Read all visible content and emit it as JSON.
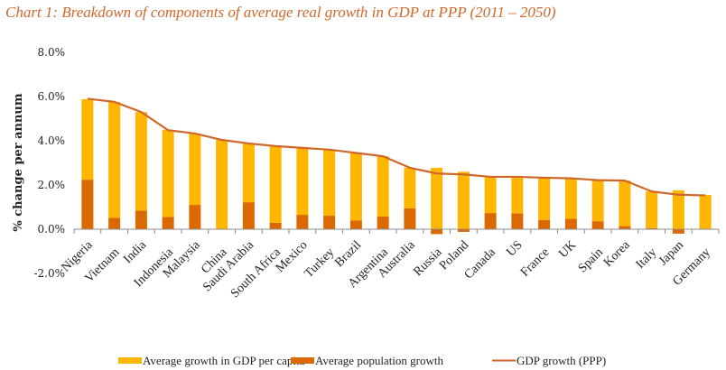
{
  "chart_data": {
    "type": "bar",
    "title": "Chart 1: Breakdown of components of average real growth in GDP at PPP (2011 – 2050)",
    "xlabel": "",
    "ylabel": "% change per annum",
    "ylim": [
      -2.0,
      8.0
    ],
    "yticks": [
      "8.0%",
      "6.0%",
      "4.0%",
      "2.0%",
      "0.0%",
      "-2.0%"
    ],
    "ytick_values": [
      8,
      6,
      4,
      2,
      0,
      -2
    ],
    "grid": false,
    "legend_position": "bottom",
    "categories": [
      "Nigeria",
      "Vietnam",
      "India",
      "Indonesia",
      "Malaysia",
      "China",
      "Saudi Arabia",
      "South Africa",
      "Mexico",
      "Turkey",
      "Brazil",
      "Argentina",
      "Australia",
      "Russia",
      "Poland",
      "Canada",
      "US",
      "France",
      "UK",
      "Spain",
      "Korea",
      "Italy",
      "Japan",
      "Germany"
    ],
    "series": [
      {
        "name": "Average growth in GDP per capita",
        "kind": "stacked-bar",
        "color": "#ffb600",
        "values": [
          3.64,
          5.24,
          4.46,
          3.94,
          3.23,
          4.04,
          2.66,
          3.47,
          3.03,
          2.99,
          3.05,
          2.73,
          1.84,
          2.78,
          2.6,
          1.64,
          1.65,
          1.91,
          1.83,
          1.86,
          2.06,
          1.66,
          1.76,
          1.55
        ]
      },
      {
        "name": "Average population growth",
        "kind": "stacked-bar",
        "color": "#dc6900",
        "values": [
          2.24,
          0.52,
          0.84,
          0.56,
          1.1,
          0.0,
          1.22,
          0.29,
          0.65,
          0.61,
          0.4,
          0.57,
          0.94,
          -0.22,
          -0.12,
          0.73,
          0.72,
          0.42,
          0.47,
          0.36,
          0.14,
          0.05,
          -0.2,
          -0.02
        ]
      },
      {
        "name": "GDP growth (PPP)",
        "kind": "line",
        "color": "#d0672a",
        "values": [
          5.9,
          5.76,
          5.3,
          4.48,
          4.33,
          4.04,
          3.88,
          3.76,
          3.68,
          3.6,
          3.45,
          3.3,
          2.78,
          2.52,
          2.48,
          2.37,
          2.37,
          2.33,
          2.3,
          2.22,
          2.2,
          1.71,
          1.56,
          1.53
        ]
      }
    ]
  }
}
